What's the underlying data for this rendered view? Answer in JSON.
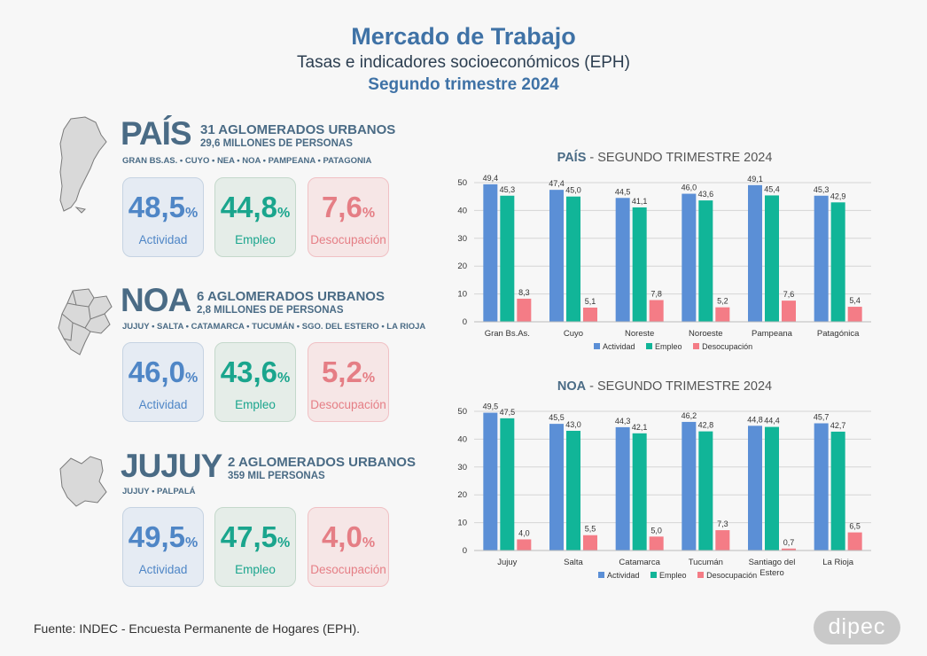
{
  "header": {
    "title": "Mercado de Trabajo",
    "subtitle": "Tasas e indicadores socioeconómicos (EPH)",
    "period": "Segundo trimestre 2024"
  },
  "regions": [
    {
      "name": "PAÍS",
      "aglomerados": "31 AGLOMERADOS URBANOS",
      "personas": "29,6 MILLONES DE PERSONAS",
      "cities": "GRAN BS.AS. • CUYO • NEA • NOA • PAMPEANA • PATAGONIA",
      "actividad": "48,5",
      "empleo": "44,8",
      "desocupacion": "7,6"
    },
    {
      "name": "NOA",
      "aglomerados": "6 AGLOMERADOS URBANOS",
      "personas": "2,8 MILLONES DE PERSONAS",
      "cities": "JUJUY • SALTA • CATAMARCA • TUCUMÁN • SGO. DEL ESTERO • LA RIOJA",
      "actividad": "46,0",
      "empleo": "43,6",
      "desocupacion": "5,2"
    },
    {
      "name": "JUJUY",
      "aglomerados": "2 AGLOMERADOS URBANOS",
      "personas": "359 MIL PERSONAS",
      "cities": "JUJUY • PALPALÁ",
      "actividad": "49,5",
      "empleo": "47,5",
      "desocupacion": "4,0"
    }
  ],
  "labels": {
    "pct": "%",
    "actividad": "Actividad",
    "empleo": "Empleo",
    "desocupacion": "Desocupación"
  },
  "colors": {
    "actividad": "#5b8fd6",
    "empleo": "#11b598",
    "desocupacion": "#f47c86"
  },
  "chart_data": [
    {
      "type": "bar",
      "title_bold": "PAÍS",
      "title_rest": " - SEGUNDO TRIMESTRE 2024",
      "categories": [
        "Gran Bs.As.",
        "Cuyo",
        "Noreste",
        "Noroeste",
        "Pampeana",
        "Patagónica"
      ],
      "series": [
        {
          "name": "Actividad",
          "values": [
            49.4,
            47.4,
            44.5,
            46.0,
            49.1,
            45.3
          ]
        },
        {
          "name": "Empleo",
          "values": [
            45.3,
            45.0,
            41.1,
            43.6,
            45.4,
            42.9
          ]
        },
        {
          "name": "Desocupación",
          "values": [
            8.3,
            5.1,
            7.8,
            5.2,
            7.6,
            5.4
          ]
        }
      ],
      "ylim": [
        0,
        50
      ],
      "yticks": [
        0,
        10,
        20,
        30,
        40,
        50
      ],
      "legend": "bottom"
    },
    {
      "type": "bar",
      "title_bold": "NOA",
      "title_rest": " - SEGUNDO TRIMESTRE 2024",
      "categories": [
        "Jujuy",
        "Salta",
        "Catamarca",
        "Tucumán",
        "Santiago del Estero",
        "La Rioja"
      ],
      "series": [
        {
          "name": "Actividad",
          "values": [
            49.5,
            45.5,
            44.3,
            46.2,
            44.8,
            45.7
          ]
        },
        {
          "name": "Empleo",
          "values": [
            47.5,
            43.0,
            42.1,
            42.8,
            44.4,
            42.7
          ]
        },
        {
          "name": "Desocupación",
          "values": [
            4.0,
            5.5,
            5.0,
            7.3,
            0.7,
            6.5
          ]
        }
      ],
      "ylim": [
        0,
        50
      ],
      "yticks": [
        0,
        10,
        20,
        30,
        40,
        50
      ],
      "legend": "bottom"
    }
  ],
  "footer": {
    "source": "Fuente: INDEC - Encuesta Permanente de Hogares (EPH).",
    "logo": "dipec"
  }
}
